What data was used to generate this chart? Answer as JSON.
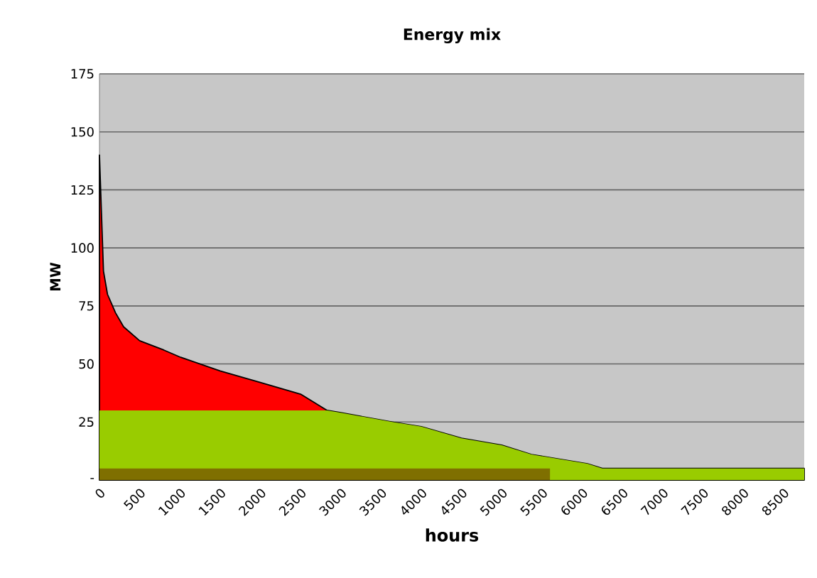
{
  "chart_data": {
    "type": "area",
    "title": "Energy mix",
    "xlabel": "hours",
    "ylabel": "MW",
    "xlim": [
      0,
      8760
    ],
    "xticks": [
      0,
      500,
      1000,
      1500,
      2000,
      2500,
      3000,
      3500,
      4000,
      4500,
      5000,
      5500,
      6000,
      6500,
      7000,
      7500,
      8000,
      8500
    ],
    "ylim": [
      0,
      175
    ],
    "yticks": [
      {
        "value": 0,
        "label": "-"
      },
      25,
      50,
      75,
      100,
      125,
      150,
      175
    ],
    "grid": "y",
    "series": [
      {
        "color": "#ff0000",
        "x": [
          0,
          50,
          100,
          200,
          300,
          500,
          800,
          1000,
          1500,
          2000,
          2500,
          2830,
          3000,
          3640,
          4000,
          4500,
          5000,
          5370,
          6065,
          6250,
          8760
        ],
        "values": [
          140,
          90,
          80,
          72,
          66,
          60,
          56,
          53,
          47,
          42,
          37,
          30,
          29,
          25,
          23,
          18,
          15,
          11,
          7,
          5,
          5
        ]
      },
      {
        "color": "#99cc00",
        "x": [
          0,
          2830,
          3000,
          3640,
          4000,
          4500,
          5000,
          5370,
          6065,
          6250,
          8760
        ],
        "values": [
          30,
          30,
          29,
          25,
          23,
          18,
          15,
          11,
          7,
          5,
          5
        ]
      },
      {
        "color": "#7f6f00",
        "x": [
          0,
          5600
        ],
        "values": [
          5,
          5
        ]
      }
    ]
  }
}
